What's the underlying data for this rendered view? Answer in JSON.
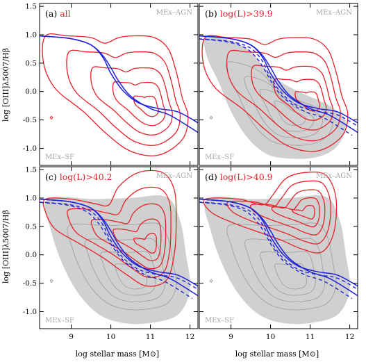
{
  "chart_data": {
    "type": "contour",
    "xlabel": "log stellar mass [M⊙]",
    "ylabel": "log [OIII]λ5007/Hβ",
    "xlim": [
      8.2,
      12.2
    ],
    "ylim": [
      -1.3,
      1.55
    ],
    "x_ticks": [
      9,
      10,
      11,
      12
    ],
    "y_ticks": [
      -1.0,
      -0.5,
      0.0,
      0.5,
      1.0,
      1.5
    ],
    "colors": {
      "contour": "#e8202a",
      "boundary": "#1e22d8",
      "background_fill": "#d0d0d0",
      "background_lines": "#9a9a9a",
      "region_label": "#a8a8a8",
      "frame": "#000000"
    },
    "region_labels": {
      "upper": "MEx–AGN",
      "lower": "MEx–SF"
    },
    "boundary_curves": {
      "solid_upper_x": [
        8.2,
        9.0,
        9.5,
        9.8,
        10.0,
        10.2,
        10.5,
        11.0,
        11.5,
        12.2
      ],
      "solid_upper_y": [
        0.98,
        0.93,
        0.82,
        0.63,
        0.42,
        0.18,
        -0.08,
        -0.3,
        -0.42,
        -0.72
      ],
      "solid_lower_x": [
        8.2,
        9.0,
        9.5,
        9.8,
        10.0,
        10.3,
        10.7,
        11.2,
        11.7,
        12.2
      ],
      "solid_lower_y": [
        0.98,
        0.93,
        0.82,
        0.6,
        0.32,
        0.02,
        -0.2,
        -0.3,
        -0.36,
        -0.55
      ]
    },
    "panels": [
      {
        "id": "a",
        "tag": "(a)",
        "label": "all",
        "has_background": false,
        "has_dashed": false,
        "contour_peaks": [
          {
            "x": 11.05,
            "y": -0.3
          }
        ]
      },
      {
        "id": "b",
        "tag": "(b)",
        "label": "log(L)>39.9",
        "has_background": true,
        "has_dashed": true,
        "contour_peaks": [
          {
            "x": 11.1,
            "y": -0.2
          }
        ]
      },
      {
        "id": "c",
        "tag": "(c)",
        "label": "log(L)>40.2",
        "has_background": true,
        "has_dashed": true,
        "contour_peaks": [
          {
            "x": 11.05,
            "y": 0.15
          }
        ]
      },
      {
        "id": "d",
        "tag": "(d)",
        "label": "log(L)>40.9",
        "has_background": true,
        "has_dashed": true,
        "contour_peaks": [
          {
            "x": 11.0,
            "y": 0.75
          }
        ]
      }
    ]
  }
}
